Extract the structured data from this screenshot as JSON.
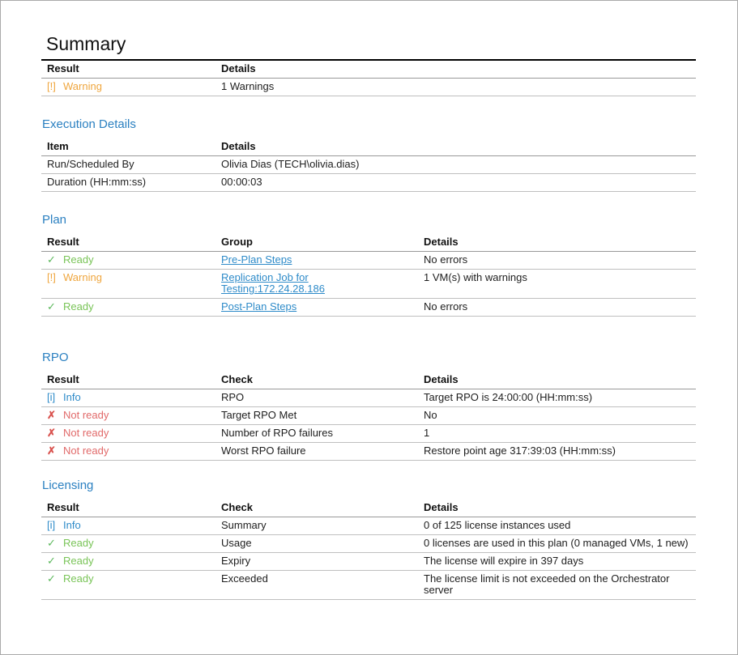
{
  "page_title": "Summary",
  "colors": {
    "heading": "#2b80c1",
    "link": "#2e8bc9",
    "warning": "#efa63e",
    "ready": "#79c457",
    "ready_icon": "#5cb85c",
    "info": "#2e8bc9",
    "notready": "#e16a6a",
    "notready_icon": "#d9534f"
  },
  "icons": {
    "warning": "[!]",
    "ready": "✓",
    "info": "[i]",
    "notready": "✗"
  },
  "sections": {
    "summary": {
      "columns": [
        "Result",
        "Details"
      ],
      "rows": [
        {
          "result": {
            "status": "warning",
            "label": "Warning"
          },
          "cells": [
            "1 Warnings"
          ]
        }
      ]
    },
    "execution": {
      "heading": "Execution Details",
      "columns": [
        "Item",
        "Details"
      ],
      "rows": [
        {
          "cells": [
            "Run/Scheduled By",
            "Olivia Dias (TECH\\olivia.dias)"
          ]
        },
        {
          "cells": [
            "Duration (HH:mm:ss)",
            "00:00:03"
          ]
        }
      ]
    },
    "plan": {
      "heading": "Plan",
      "columns": [
        "Result",
        "Group",
        "Details"
      ],
      "link_col": 0,
      "rows": [
        {
          "result": {
            "status": "ready",
            "label": "Ready"
          },
          "cells": [
            "Pre-Plan Steps",
            "No errors"
          ]
        },
        {
          "result": {
            "status": "warning",
            "label": "Warning"
          },
          "cells": [
            "Replication Job for Testing:172.24.28.186",
            "1 VM(s) with warnings"
          ]
        },
        {
          "result": {
            "status": "ready",
            "label": "Ready"
          },
          "cells": [
            "Post-Plan Steps",
            "No errors"
          ]
        }
      ]
    },
    "rpo": {
      "heading": "RPO",
      "columns": [
        "Result",
        "Check",
        "Details"
      ],
      "rows": [
        {
          "result": {
            "status": "info",
            "label": "Info"
          },
          "cells": [
            "RPO",
            "Target RPO is 24:00:00 (HH:mm:ss)"
          ]
        },
        {
          "result": {
            "status": "notready",
            "label": "Not ready"
          },
          "cells": [
            "Target RPO Met",
            "No"
          ]
        },
        {
          "result": {
            "status": "notready",
            "label": "Not ready"
          },
          "cells": [
            "Number of RPO failures",
            "1"
          ]
        },
        {
          "result": {
            "status": "notready",
            "label": "Not ready"
          },
          "cells": [
            "Worst RPO failure",
            "Restore point age 317:39:03 (HH:mm:ss)"
          ]
        }
      ]
    },
    "licensing": {
      "heading": "Licensing",
      "columns": [
        "Result",
        "Check",
        "Details"
      ],
      "rows": [
        {
          "result": {
            "status": "info",
            "label": "Info"
          },
          "cells": [
            "Summary",
            "0 of 125 license instances used"
          ]
        },
        {
          "result": {
            "status": "ready",
            "label": "Ready"
          },
          "cells": [
            "Usage",
            "0 licenses are used in this plan (0 managed VMs, 1 new)"
          ]
        },
        {
          "result": {
            "status": "ready",
            "label": "Ready"
          },
          "cells": [
            "Expiry",
            "The license will expire in 397 days"
          ]
        },
        {
          "result": {
            "status": "ready",
            "label": "Ready"
          },
          "cells": [
            "Exceeded",
            "The license limit is not exceeded on the Orchestrator server"
          ]
        }
      ]
    }
  }
}
